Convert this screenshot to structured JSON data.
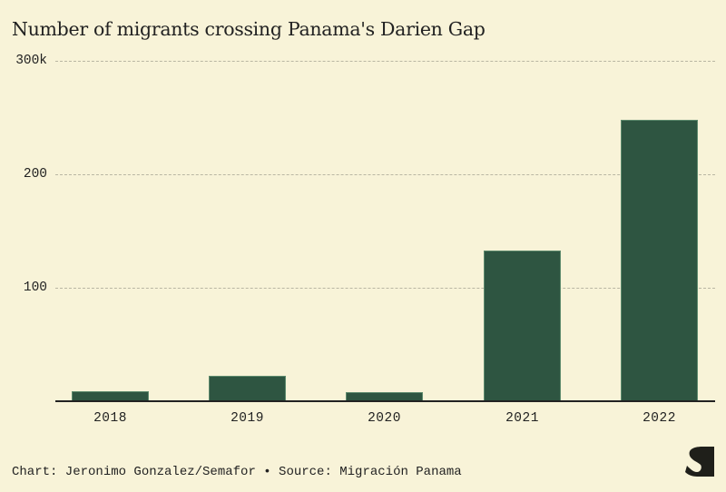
{
  "title": "Number of migrants crossing Panama's Darien Gap",
  "y_axis": {
    "ticks": [
      "300k",
      "200",
      "100"
    ]
  },
  "x_axis": {
    "ticks": [
      "2018",
      "2019",
      "2020",
      "2021",
      "2022"
    ]
  },
  "footer": "Chart: Jeronimo Gonzalez/Semafor • Source: Migración Panama",
  "logo": "semafor-s-logo",
  "colors": {
    "background": "#f8f3d8",
    "bar": "#2e5541",
    "text": "#222222"
  },
  "chart_data": {
    "type": "bar",
    "title": "Number of migrants crossing Panama's Darien Gap",
    "categories": [
      "2018",
      "2019",
      "2020",
      "2021",
      "2022"
    ],
    "values": [
      9000,
      22000,
      8000,
      133000,
      248000
    ],
    "xlabel": "",
    "ylabel": "",
    "ylim": [
      0,
      300000
    ],
    "yticks": [
      0,
      100000,
      200000,
      300000
    ],
    "ytick_labels": [
      "",
      "100",
      "200",
      "300k"
    ],
    "grid": true,
    "legend": null,
    "source": "Chart: Jeronimo Gonzalez/Semafor • Source: Migración Panama"
  }
}
